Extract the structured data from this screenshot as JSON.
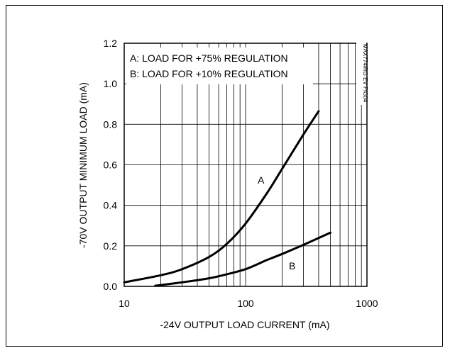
{
  "chart_data": {
    "type": "line",
    "xlabel": "-24V OUTPUT LOAD CURRENT (mA)",
    "ylabel": "-70V OUTPUT MINIMUM LOAD (mA)",
    "xscale": "log",
    "xlim": [
      10,
      1000
    ],
    "ylim": [
      0,
      1.2
    ],
    "x_ticks": [
      10,
      100,
      1000
    ],
    "x_tick_labels": [
      "10",
      "100",
      "1000"
    ],
    "y_ticks": [
      0,
      0.2,
      0.4,
      0.6,
      0.8,
      1.0,
      1.2
    ],
    "y_tick_labels": [
      "0.0",
      "0.2",
      "0.4",
      "0.6",
      "0.8",
      "1.0",
      "1.2"
    ],
    "grid": true,
    "legend_lines": [
      "A:  LOAD FOR +75% REGULATION",
      "B:  LOAD FOR +10% REGULATION"
    ],
    "watermark": "MAX774IRG EV FIG04",
    "series": [
      {
        "name": "A",
        "x": [
          10,
          20,
          30,
          50,
          70,
          100,
          150,
          200,
          300,
          400
        ],
        "y": [
          0.02,
          0.055,
          0.085,
          0.145,
          0.21,
          0.31,
          0.46,
          0.58,
          0.75,
          0.865
        ]
      },
      {
        "name": "B",
        "x": [
          18,
          30,
          50,
          70,
          100,
          150,
          200,
          300,
          500
        ],
        "y": [
          0.003,
          0.02,
          0.04,
          0.06,
          0.085,
          0.13,
          0.16,
          0.205,
          0.265
        ]
      }
    ]
  }
}
